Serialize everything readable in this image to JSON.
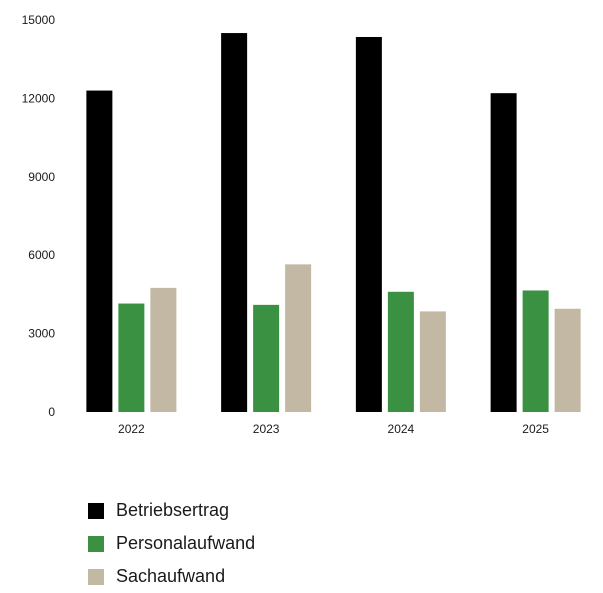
{
  "chart_data": {
    "type": "bar",
    "categories": [
      "2022",
      "2023",
      "2024",
      "2025"
    ],
    "series": [
      {
        "name": "Betriebsertrag",
        "color": "#000000",
        "values": [
          12300,
          14500,
          14350,
          12200
        ]
      },
      {
        "name": "Personalaufwand",
        "color": "#3a9142",
        "values": [
          4150,
          4100,
          4600,
          4650
        ]
      },
      {
        "name": "Sachaufwand",
        "color": "#c2b8a4",
        "values": [
          4750,
          5650,
          3850,
          3950
        ]
      }
    ],
    "yticks": [
      "0",
      "3000",
      "6000",
      "9000",
      "12000",
      "15000"
    ],
    "ylim": [
      0,
      15000
    ],
    "grid": true,
    "legend_position": "bottom-left"
  }
}
